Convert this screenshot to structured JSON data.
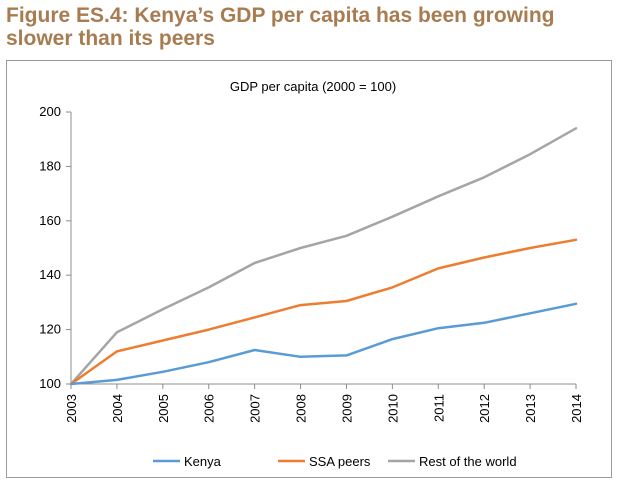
{
  "figure_title": "Figure ES.4: Kenya’s GDP per capita has been growing slower than its peers",
  "chart_data": {
    "type": "line",
    "title": "GDP per capita (2000 = 100)",
    "xlabel": "",
    "ylabel": "",
    "x": [
      "2003",
      "2004",
      "2005",
      "2006",
      "2007",
      "2008",
      "2009",
      "2010",
      "2011",
      "2012",
      "2013",
      "2014"
    ],
    "ylim": [
      100,
      200
    ],
    "yticks": [
      100,
      120,
      140,
      160,
      180,
      200
    ],
    "grid": false,
    "legend": "bottom",
    "series": [
      {
        "name": "Kenya",
        "color": "#5b9bd5",
        "values": [
          100,
          101.5,
          104.5,
          108,
          112.5,
          110,
          110.5,
          116.5,
          120.5,
          122.5,
          126,
          129.5
        ]
      },
      {
        "name": "SSA peers",
        "color": "#ed7d31",
        "values": [
          100,
          112,
          116,
          120,
          124.5,
          129,
          130.5,
          135.5,
          142.5,
          146.5,
          150,
          153
        ]
      },
      {
        "name": "Rest of the world",
        "color": "#a5a5a5",
        "values": [
          100,
          119,
          127.5,
          135.5,
          144.5,
          150,
          154.5,
          161.5,
          169,
          176,
          184.5,
          194
        ]
      }
    ]
  }
}
